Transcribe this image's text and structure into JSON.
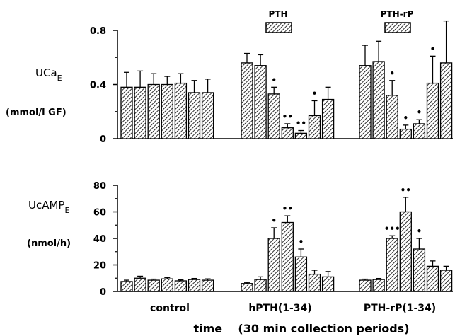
{
  "chart_data": [
    {
      "type": "bar",
      "panel": "top",
      "ylabel_main": "UCa",
      "ylabel_sub": "E",
      "ylabel_units": "(mmol/l GF)",
      "yticks": [
        "0",
        "0.4",
        "0.8"
      ],
      "ylim": [
        0,
        0.8
      ],
      "treatment_labels": [
        "PTH",
        "PTH-rP"
      ],
      "groups": [
        {
          "values": [
            0.38,
            0.38,
            0.4,
            0.4,
            0.41,
            0.34,
            0.34
          ],
          "errors": [
            0.11,
            0.12,
            0.08,
            0.06,
            0.07,
            0.09,
            0.1
          ],
          "marks": [
            "",
            "",
            "",
            "",
            "",
            "",
            ""
          ]
        },
        {
          "values": [
            0.56,
            0.54,
            0.33,
            0.08,
            0.04,
            0.17,
            0.29
          ],
          "errors": [
            0.07,
            0.08,
            0.05,
            0.03,
            0.02,
            0.11,
            0.09
          ],
          "marks": [
            "",
            "",
            "•",
            "••",
            "••",
            "•",
            ""
          ]
        },
        {
          "values": [
            0.54,
            0.57,
            0.32,
            0.07,
            0.11,
            0.41,
            0.56
          ],
          "errors": [
            0.15,
            0.15,
            0.11,
            0.03,
            0.03,
            0.2,
            0.31
          ],
          "marks": [
            "",
            "",
            "•",
            "•",
            "•",
            "•",
            ""
          ]
        }
      ]
    },
    {
      "type": "bar",
      "panel": "bottom",
      "ylabel_main": "UcAMP",
      "ylabel_sub": "E",
      "ylabel_units": "(nmol/h)",
      "yticks": [
        "0",
        "20",
        "40",
        "60",
        "80"
      ],
      "ylim": [
        0,
        80
      ],
      "groups": [
        {
          "values": [
            7.5,
            10,
            8.5,
            9.5,
            8,
            9,
            8.5
          ],
          "errors": [
            1,
            1.5,
            0.8,
            1,
            0.7,
            0.8,
            1
          ],
          "marks": [
            "",
            "",
            "",
            "",
            "",
            "",
            ""
          ]
        },
        {
          "values": [
            6,
            9,
            40,
            52,
            26,
            13,
            11
          ],
          "errors": [
            0.8,
            2,
            8,
            5,
            6,
            3,
            4
          ],
          "marks": [
            "",
            "",
            "•",
            "••",
            "•",
            "",
            ""
          ]
        },
        {
          "values": [
            8.5,
            9,
            40,
            60,
            32,
            19,
            16
          ],
          "errors": [
            0.8,
            0.8,
            2,
            11,
            8,
            4,
            3
          ],
          "marks": [
            "",
            "",
            "•••",
            "••",
            "•",
            "",
            ""
          ]
        }
      ],
      "categories": [
        "control",
        "hPTH(1-34)",
        "PTH-rP(1-34)"
      ],
      "xlabel": "time    (30 min collection periods)"
    }
  ]
}
